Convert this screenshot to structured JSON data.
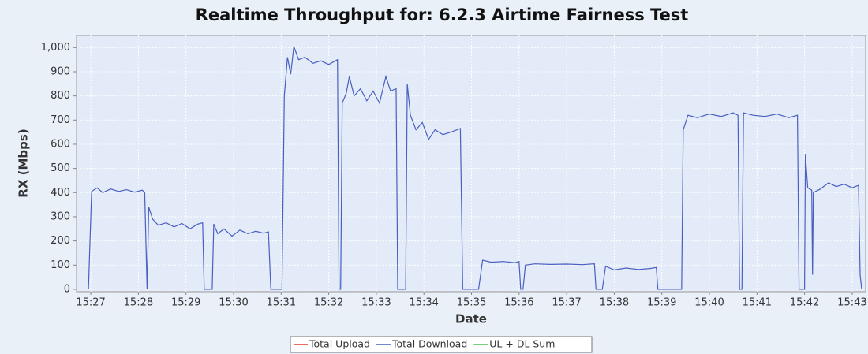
{
  "chart_data": {
    "type": "line",
    "title": "Realtime Throughput for: 6.2.3 Airtime Fairness Test",
    "x_label": "Date",
    "y_label": "RX (Mbps)",
    "x": [
      "15:26:57",
      "15:27:01",
      "15:27:08",
      "15:27:15",
      "15:27:25",
      "15:27:35",
      "15:27:45",
      "15:27:55",
      "15:28:05",
      "15:28:08",
      "15:28:11",
      "15:28:13",
      "15:28:18",
      "15:28:25",
      "15:28:35",
      "15:28:45",
      "15:28:55",
      "15:29:05",
      "15:29:15",
      "15:29:21",
      "15:29:23",
      "15:29:33",
      "15:29:35",
      "15:29:40",
      "15:29:48",
      "15:29:58",
      "15:30:08",
      "15:30:18",
      "15:30:28",
      "15:30:38",
      "15:30:44",
      "15:30:47",
      "15:31:01",
      "15:31:04",
      "15:31:08",
      "15:31:12",
      "15:31:16",
      "15:31:22",
      "15:31:30",
      "15:31:40",
      "15:31:50",
      "15:32:00",
      "15:32:11",
      "15:32:13",
      "15:32:15",
      "15:32:17",
      "15:32:22",
      "15:32:26",
      "15:32:32",
      "15:32:40",
      "15:32:48",
      "15:32:56",
      "15:33:04",
      "15:33:12",
      "15:33:18",
      "15:33:25",
      "15:33:27",
      "15:33:37",
      "15:33:39",
      "15:33:43",
      "15:33:50",
      "15:33:58",
      "15:34:06",
      "15:34:14",
      "15:34:24",
      "15:34:34",
      "15:34:46",
      "15:34:49",
      "15:35:09",
      "15:35:14",
      "15:35:25",
      "15:35:40",
      "15:35:55",
      "15:36:00",
      "15:36:02",
      "15:36:05",
      "15:36:08",
      "15:36:20",
      "15:36:40",
      "15:37:00",
      "15:37:20",
      "15:37:35",
      "15:37:37",
      "15:37:45",
      "15:37:49",
      "15:38:00",
      "15:38:15",
      "15:38:30",
      "15:38:45",
      "15:38:53",
      "15:38:55",
      "15:39:25",
      "15:39:27",
      "15:39:33",
      "15:39:45",
      "15:40:00",
      "15:40:15",
      "15:40:30",
      "15:40:36",
      "15:40:38",
      "15:40:41",
      "15:40:43",
      "15:40:55",
      "15:41:10",
      "15:41:25",
      "15:41:40",
      "15:41:51",
      "15:41:53",
      "15:42:00",
      "15:42:01",
      "15:42:04",
      "15:42:09",
      "15:42:10",
      "15:42:11",
      "15:42:20",
      "15:42:30",
      "15:42:40",
      "15:42:50",
      "15:43:00",
      "15:43:08",
      "15:43:10",
      "15:43:12"
    ],
    "series": [
      {
        "name": "Total Upload",
        "color": "#e0392b"
      },
      {
        "name": "Total Download",
        "color": "#4a5fc1",
        "values": [
          0,
          405,
          420,
          400,
          415,
          405,
          412,
          402,
          410,
          400,
          0,
          340,
          290,
          265,
          275,
          258,
          272,
          250,
          270,
          275,
          0,
          0,
          270,
          230,
          250,
          220,
          245,
          230,
          240,
          232,
          238,
          0,
          0,
          800,
          960,
          890,
          1005,
          950,
          960,
          935,
          945,
          930,
          950,
          0,
          0,
          770,
          810,
          880,
          800,
          830,
          780,
          820,
          770,
          880,
          820,
          830,
          0,
          0,
          850,
          720,
          660,
          690,
          620,
          660,
          640,
          650,
          665,
          0,
          0,
          120,
          112,
          115,
          110,
          115,
          0,
          0,
          100,
          105,
          103,
          104,
          102,
          105,
          0,
          0,
          95,
          80,
          88,
          82,
          86,
          90,
          0,
          0,
          660,
          720,
          710,
          725,
          715,
          730,
          720,
          0,
          0,
          730,
          720,
          715,
          725,
          710,
          720,
          0,
          0,
          560,
          420,
          410,
          60,
          400,
          415,
          440,
          425,
          435,
          420,
          430,
          60,
          0
        ]
      },
      {
        "name": "UL + DL Sum",
        "color": "#4cc24c"
      }
    ],
    "xlim": [
      "15:26:42",
      "15:43:17"
    ],
    "xticks": [
      "15:27",
      "15:28",
      "15:29",
      "15:30",
      "15:31",
      "15:32",
      "15:33",
      "15:34",
      "15:35",
      "15:36",
      "15:37",
      "15:38",
      "15:39",
      "15:40",
      "15:41",
      "15:42",
      "15:43"
    ],
    "ylim": [
      -10,
      1050
    ],
    "yticks": [
      0,
      100,
      200,
      300,
      400,
      500,
      600,
      700,
      800,
      900,
      {
        "value": 1000,
        "label": "1,000"
      }
    ],
    "grid": true,
    "legend": "bottom"
  }
}
